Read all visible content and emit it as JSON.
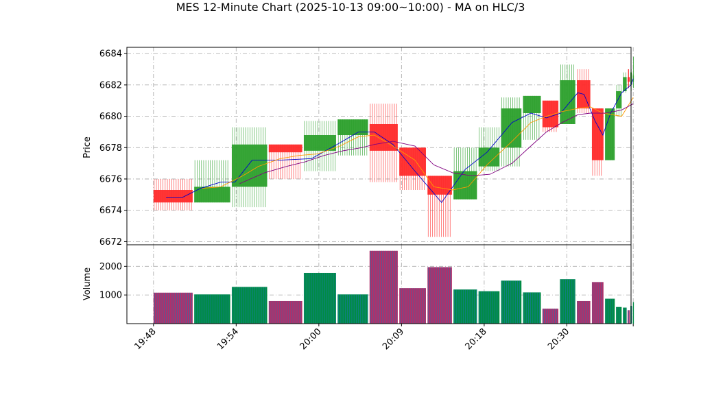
{
  "chart_data": {
    "type": "candlestick",
    "title": "MES 12-Minute Chart (2025-10-13 09:00~10:00) - MA on HLC/3",
    "price_panel": {
      "ylabel": "Price",
      "ylim": [
        6671.8,
        6684.4
      ],
      "yticks": [
        6672,
        6674,
        6676,
        6678,
        6680,
        6682,
        6684
      ],
      "grid": true
    },
    "volume_panel": {
      "ylabel": "Volume",
      "ylim": [
        0,
        2750
      ],
      "yticks": [
        1000,
        2000
      ],
      "ytick_labels": [
        "1000",
        "2000"
      ],
      "grid": true
    },
    "xlim": [
      -0.5,
      15.6
    ],
    "xticks": [
      {
        "x": 0.35,
        "label": "19:48"
      },
      {
        "x": 2.99,
        "label": "19:54"
      },
      {
        "x": 5.63,
        "label": "20:00"
      },
      {
        "x": 8.27,
        "label": "20:09"
      },
      {
        "x": 10.91,
        "label": "20:18"
      },
      {
        "x": 13.55,
        "label": "20:30"
      }
    ],
    "end_tick_x": 15.67,
    "candles": [
      {
        "x0": 0.35,
        "x1": 1.6,
        "open": 6675.3,
        "high": 6676.0,
        "low": 6674.0,
        "close": 6674.5,
        "volume": 1080
      },
      {
        "x0": 1.65,
        "x1": 2.8,
        "open": 6674.5,
        "high": 6677.2,
        "low": 6674.5,
        "close": 6675.5,
        "volume": 1020
      },
      {
        "x0": 2.85,
        "x1": 3.98,
        "open": 6675.5,
        "high": 6679.3,
        "low": 6674.2,
        "close": 6678.2,
        "volume": 1280
      },
      {
        "x0": 4.03,
        "x1": 5.1,
        "open": 6678.2,
        "high": 6678.2,
        "low": 6676.0,
        "close": 6677.7,
        "volume": 790
      },
      {
        "x0": 5.15,
        "x1": 6.18,
        "open": 6677.8,
        "high": 6679.7,
        "low": 6676.5,
        "close": 6678.8,
        "volume": 1770
      },
      {
        "x0": 6.23,
        "x1": 7.2,
        "open": 6678.8,
        "high": 6679.8,
        "low": 6677.5,
        "close": 6679.8,
        "volume": 1020
      },
      {
        "x0": 7.25,
        "x1": 8.15,
        "open": 6679.5,
        "high": 6680.8,
        "low": 6675.8,
        "close": 6677.8,
        "volume": 2540
      },
      {
        "x0": 8.2,
        "x1": 9.05,
        "open": 6678.0,
        "high": 6678.0,
        "low": 6675.3,
        "close": 6676.2,
        "volume": 1240
      },
      {
        "x0": 9.1,
        "x1": 9.88,
        "open": 6676.2,
        "high": 6676.2,
        "low": 6672.3,
        "close": 6675.0,
        "volume": 1970
      },
      {
        "x0": 9.93,
        "x1": 10.68,
        "open": 6674.7,
        "high": 6678.0,
        "low": 6674.7,
        "close": 6676.5,
        "volume": 1190
      },
      {
        "x0": 10.73,
        "x1": 11.4,
        "open": 6676.8,
        "high": 6679.3,
        "low": 6676.5,
        "close": 6678.0,
        "volume": 1130
      },
      {
        "x0": 11.45,
        "x1": 12.1,
        "open": 6678.0,
        "high": 6681.2,
        "low": 6676.8,
        "close": 6680.5,
        "volume": 1500
      },
      {
        "x0": 12.15,
        "x1": 12.72,
        "open": 6680.2,
        "high": 6681.3,
        "low": 6678.5,
        "close": 6681.3,
        "volume": 1090
      },
      {
        "x0": 12.77,
        "x1": 13.28,
        "open": 6681.0,
        "high": 6681.0,
        "low": 6679.0,
        "close": 6679.3,
        "volume": 520
      },
      {
        "x0": 13.33,
        "x1": 13.82,
        "open": 6679.5,
        "high": 6683.3,
        "low": 6679.5,
        "close": 6682.3,
        "volume": 1550
      },
      {
        "x0": 13.87,
        "x1": 14.3,
        "open": 6682.3,
        "high": 6683.0,
        "low": 6680.2,
        "close": 6680.5,
        "volume": 790
      },
      {
        "x0": 14.35,
        "x1": 14.72,
        "open": 6680.5,
        "high": 6680.5,
        "low": 6676.2,
        "close": 6677.2,
        "volume": 1450
      },
      {
        "x0": 14.77,
        "x1": 15.08,
        "open": 6677.2,
        "high": 6680.5,
        "low": 6677.2,
        "close": 6680.5,
        "volume": 870
      },
      {
        "x0": 15.12,
        "x1": 15.3,
        "open": 6680.5,
        "high": 6682.0,
        "low": 6680.0,
        "close": 6681.6,
        "volume": 580
      },
      {
        "x0": 15.34,
        "x1": 15.46,
        "open": 6681.6,
        "high": 6682.8,
        "low": 6681.5,
        "close": 6682.5,
        "volume": 560
      },
      {
        "x0": 15.49,
        "x1": 15.56,
        "open": 6682.5,
        "high": 6683.0,
        "low": 6681.8,
        "close": 6682.2,
        "volume": 470
      },
      {
        "x0": 15.58,
        "x1": 15.63,
        "open": 6682.0,
        "high": 6683.0,
        "low": 6681.6,
        "close": 6682.8,
        "volume": 620
      },
      {
        "x0": 15.66,
        "x1": 15.69,
        "open": 6682.2,
        "high": 6683.8,
        "low": 6681.8,
        "close": 6682.6,
        "volume": 750
      }
    ],
    "moving_averages": [
      {
        "color": "#0000cc",
        "x": [
          0.75,
          1.25,
          1.85,
          2.5,
          2.95,
          3.5,
          4.4,
          5.4,
          6.3,
          6.9,
          7.4,
          8.0,
          8.7,
          9.55,
          10.3,
          11.0,
          11.8,
          12.4,
          12.9,
          13.35,
          13.9,
          14.1,
          14.45,
          14.7,
          14.95,
          15.3,
          15.6,
          15.67
        ],
        "y": [
          6674.8,
          6674.8,
          6675.4,
          6675.8,
          6675.8,
          6677.2,
          6677.2,
          6677.3,
          6678.3,
          6679.0,
          6679.0,
          6678.2,
          6676.5,
          6674.5,
          6676.6,
          6677.7,
          6679.6,
          6680.2,
          6679.9,
          6680.2,
          6681.5,
          6681.4,
          6679.7,
          6678.8,
          6680.2,
          6681.5,
          6682.0,
          6682.4
        ]
      },
      {
        "color": "#ff9900",
        "x": [
          1.9,
          2.5,
          3.2,
          3.7,
          4.4,
          5.0,
          5.6,
          6.3,
          6.9,
          7.4,
          8.0,
          8.7,
          9.3,
          9.9,
          10.4,
          11.0,
          11.8,
          12.4,
          12.9,
          13.4,
          13.9,
          14.3,
          14.7,
          15.3,
          15.67
        ],
        "y": [
          6675.4,
          6675.5,
          6676.2,
          6676.8,
          6677.3,
          6677.5,
          6677.6,
          6678.1,
          6678.7,
          6678.8,
          6678.1,
          6677.2,
          6675.5,
          6675.3,
          6675.5,
          6676.9,
          6678.4,
          6679.6,
          6680.0,
          6680.3,
          6680.5,
          6680.6,
          6680.2,
          6680.0,
          6681.2
        ]
      },
      {
        "color": "#800080",
        "x": [
          3.1,
          3.9,
          4.6,
          5.2,
          5.8,
          6.4,
          7.0,
          7.4,
          8.0,
          8.7,
          9.3,
          9.9,
          10.5,
          11.1,
          11.8,
          12.4,
          12.9,
          13.4,
          13.9,
          14.3,
          14.8,
          15.3,
          15.67
        ],
        "y": [
          6675.7,
          6676.4,
          6676.8,
          6677.1,
          6677.5,
          6677.8,
          6678.0,
          6678.2,
          6678.4,
          6678.1,
          6676.9,
          6676.4,
          6676.2,
          6676.3,
          6677.0,
          6678.1,
          6679.0,
          6679.6,
          6680.1,
          6680.2,
          6680.2,
          6680.4,
          6680.8
        ]
      }
    ],
    "colors": {
      "up": "#2ca02c",
      "down": "#ff2a2a",
      "vol_up": "#008b45",
      "vol_down": "#b0306a",
      "vol_edge": "#1f77b4",
      "grid": "#b0b0b0"
    }
  }
}
